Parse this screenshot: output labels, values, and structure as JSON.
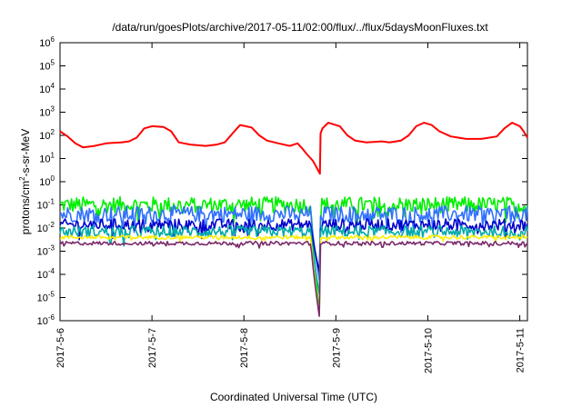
{
  "chart_data": {
    "type": "line",
    "title": "/data/run/goesPlots/archive/2017-05-11/02:00/flux/../flux/5daysMoonFluxes.txt",
    "xlabel": "Coordinated Universal Time (UTC)",
    "ylabel": "protons/cm²-s-sr-MeV",
    "y_scale": "log",
    "ylim": [
      1e-06,
      1000000.0
    ],
    "y_ticks": [
      {
        "exp": "-6",
        "v": 1e-06
      },
      {
        "exp": "-5",
        "v": 1e-05
      },
      {
        "exp": "-4",
        "v": 0.0001
      },
      {
        "exp": "-3",
        "v": 0.001
      },
      {
        "exp": "-2",
        "v": 0.01
      },
      {
        "exp": "-1",
        "v": 0.1
      },
      {
        "exp": "0",
        "v": 1
      },
      {
        "exp": "1",
        "v": 10
      },
      {
        "exp": "2",
        "v": 100
      },
      {
        "exp": "3",
        "v": 1000
      },
      {
        "exp": "4",
        "v": 10000
      },
      {
        "exp": "5",
        "v": 100000
      },
      {
        "exp": "6",
        "v": 1000000
      }
    ],
    "xlim": [
      "2017-05-06 00:00",
      "2017-05-11 02:00"
    ],
    "x_ticks": [
      "2017-5-6",
      "2017-5-7",
      "2017-5-8",
      "2017-5-9",
      "2017-5-10",
      "2017-5-11"
    ],
    "grid": false,
    "legend": "none",
    "series": [
      {
        "color": "#ff0000",
        "points": [
          [
            "2017-05-06 00:00",
            150
          ],
          [
            "2017-05-06 02:00",
            90
          ],
          [
            "2017-05-06 04:00",
            45
          ],
          [
            "2017-05-06 06:00",
            30
          ],
          [
            "2017-05-06 09:00",
            35
          ],
          [
            "2017-05-06 12:00",
            45
          ],
          [
            "2017-05-06 16:00",
            50
          ],
          [
            "2017-05-06 18:00",
            55
          ],
          [
            "2017-05-06 20:00",
            80
          ],
          [
            "2017-05-06 22:00",
            200
          ],
          [
            "2017-05-07 00:00",
            250
          ],
          [
            "2017-05-07 03:00",
            230
          ],
          [
            "2017-05-07 05:00",
            150
          ],
          [
            "2017-05-07 07:00",
            50
          ],
          [
            "2017-05-07 10:00",
            40
          ],
          [
            "2017-05-07 14:00",
            35
          ],
          [
            "2017-05-07 17:00",
            40
          ],
          [
            "2017-05-07 19:00",
            50
          ],
          [
            "2017-05-07 21:00",
            120
          ],
          [
            "2017-05-07 23:00",
            280
          ],
          [
            "2017-05-08 02:00",
            220
          ],
          [
            "2017-05-08 04:00",
            100
          ],
          [
            "2017-05-08 06:00",
            60
          ],
          [
            "2017-05-08 09:00",
            45
          ],
          [
            "2017-05-08 12:00",
            35
          ],
          [
            "2017-05-08 14:00",
            45
          ],
          [
            "2017-05-08 15:00",
            30
          ],
          [
            "2017-05-08 16:30",
            15
          ],
          [
            "2017-05-08 18:00",
            8
          ],
          [
            "2017-05-08 19:00",
            4
          ],
          [
            "2017-05-08 19:50",
            2.2
          ],
          [
            "2017-05-08 20:00",
            120
          ],
          [
            "2017-05-08 20:30",
            200
          ],
          [
            "2017-05-08 22:00",
            350
          ],
          [
            "2017-05-09 01:00",
            250
          ],
          [
            "2017-05-09 03:00",
            100
          ],
          [
            "2017-05-09 05:00",
            60
          ],
          [
            "2017-05-09 08:00",
            50
          ],
          [
            "2017-05-09 12:00",
            55
          ],
          [
            "2017-05-09 14:00",
            50
          ],
          [
            "2017-05-09 17:00",
            60
          ],
          [
            "2017-05-09 19:00",
            100
          ],
          [
            "2017-05-09 21:00",
            250
          ],
          [
            "2017-05-09 23:00",
            350
          ],
          [
            "2017-05-10 01:00",
            280
          ],
          [
            "2017-05-10 03:00",
            150
          ],
          [
            "2017-05-10 06:00",
            90
          ],
          [
            "2017-05-10 10:00",
            70
          ],
          [
            "2017-05-10 14:00",
            70
          ],
          [
            "2017-05-10 18:00",
            90
          ],
          [
            "2017-05-10 20:00",
            200
          ],
          [
            "2017-05-10 22:00",
            350
          ],
          [
            "2017-05-11 00:00",
            250
          ],
          [
            "2017-05-11 01:00",
            150
          ],
          [
            "2017-05-11 02:00",
            80
          ]
        ]
      },
      {
        "color": "#00ee00",
        "base": 0.1,
        "noise": 0.35,
        "drop_to": 1e-06
      },
      {
        "color": "#3070ff",
        "base": 0.04,
        "noise": 0.35,
        "drop_to": 4e-05
      },
      {
        "color": "#0000cc",
        "base": 0.014,
        "noise": 0.25,
        "drop_to": 0.0001
      },
      {
        "color": "#00aaaa",
        "base": 0.007,
        "noise": 0.25,
        "drop_to": 1e-05
      },
      {
        "color": "#ffee00",
        "base": 0.004,
        "noise": 0.08,
        "drop_to": 1e-06
      },
      {
        "color": "#7a2a6a",
        "base": 0.0022,
        "noise": 0.08,
        "drop_to": 1e-06
      }
    ]
  }
}
